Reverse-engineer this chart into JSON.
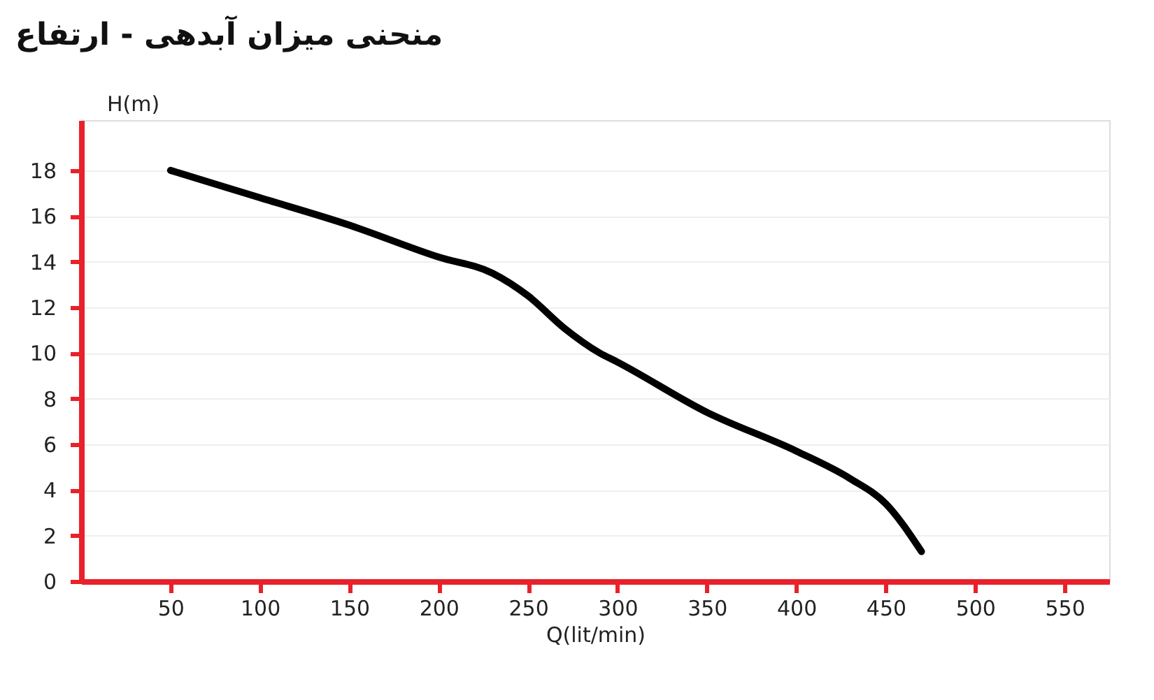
{
  "chart_data": {
    "type": "line",
    "title": "منحنی میزان آبدهی - ارتفاع",
    "xlabel": "Q(lit/min)",
    "ylabel": "H(m)",
    "x": [
      50,
      100,
      150,
      200,
      230,
      250,
      270,
      290,
      300,
      350,
      400,
      430,
      450,
      470
    ],
    "series": [
      {
        "color": "#000000",
        "values": [
          18,
          16.8,
          15.6,
          14.2,
          13.5,
          12.5,
          11.1,
          10.0,
          9.6,
          7.4,
          5.7,
          4.5,
          3.4,
          1.3
        ]
      }
    ],
    "xlim": [
      0,
      575
    ],
    "xticks": [
      50,
      100,
      150,
      200,
      250,
      300,
      350,
      400,
      450,
      500,
      550
    ],
    "ylim": [
      0,
      20.2
    ],
    "yticks": [
      0,
      2,
      4,
      6,
      8,
      10,
      12,
      14,
      16,
      18
    ],
    "grid": "y",
    "legend": false,
    "marker": "none",
    "line_style": "solid"
  }
}
